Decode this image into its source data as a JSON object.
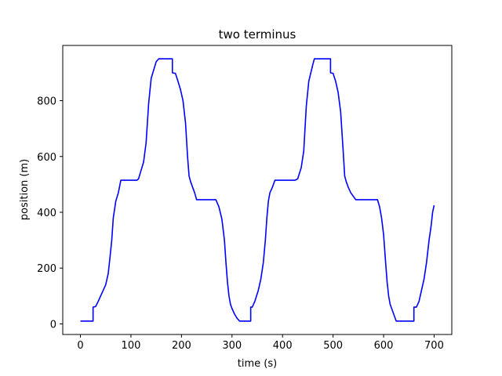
{
  "chart_data": {
    "type": "line",
    "title": "two terminus",
    "xlabel": "time (s)",
    "ylabel": "position (m)",
    "xlim": [
      -35,
      735
    ],
    "ylim": [
      -38,
      998
    ],
    "xticks": [
      0,
      100,
      200,
      300,
      400,
      500,
      600,
      700
    ],
    "yticks": [
      0,
      200,
      400,
      600,
      800
    ],
    "grid": false,
    "series": [
      {
        "color": "#0000ff",
        "x": [
          0,
          25,
          25,
          30,
          35,
          40,
          45,
          50,
          55,
          58,
          62,
          65,
          70,
          75,
          80,
          112,
          115,
          120,
          125,
          130,
          135,
          140,
          145,
          150,
          155,
          160,
          168,
          182,
          182,
          182,
          188,
          193,
          198,
          203,
          208,
          212,
          215,
          218,
          222,
          226,
          230,
          237,
          245,
          258,
          268,
          274,
          280,
          285,
          288,
          291,
          294,
          297,
          300,
          305,
          310,
          315,
          320,
          337,
          337,
          337,
          340,
          345,
          352,
          357,
          362,
          366,
          369,
          372,
          375,
          380,
          385,
          392,
          425,
          430,
          437,
          442,
          447,
          452,
          456,
          460,
          463,
          466,
          470,
          475,
          480,
          495,
          495,
          495,
          500,
          505,
          510,
          515,
          520,
          523,
          526,
          530,
          535,
          545,
          560,
          588,
          592,
          596,
          600,
          604,
          607,
          610,
          613,
          616,
          620,
          625,
          632,
          645,
          660,
          660,
          660,
          665,
          670,
          675,
          680,
          685,
          690,
          694,
          697,
          700
        ],
        "y": [
          10,
          10,
          60,
          62,
          80,
          100,
          120,
          140,
          180,
          230,
          300,
          380,
          440,
          470,
          515,
          515,
          520,
          550,
          580,
          650,
          790,
          880,
          910,
          940,
          950,
          950,
          950,
          950,
          900,
          900,
          898,
          870,
          840,
          800,
          720,
          600,
          530,
          510,
          490,
          470,
          445,
          445,
          445,
          445,
          445,
          420,
          375,
          300,
          220,
          150,
          100,
          70,
          55,
          35,
          20,
          10,
          10,
          10,
          20,
          60,
          60,
          80,
          120,
          160,
          220,
          300,
          380,
          440,
          470,
          490,
          515,
          515,
          515,
          520,
          560,
          620,
          780,
          870,
          900,
          930,
          950,
          950,
          950,
          950,
          950,
          950,
          900,
          900,
          898,
          870,
          830,
          760,
          620,
          530,
          510,
          490,
          470,
          445,
          445,
          445,
          420,
          380,
          320,
          220,
          150,
          100,
          70,
          55,
          35,
          10,
          10,
          10,
          10,
          20,
          60,
          60,
          80,
          120,
          160,
          220,
          300,
          350,
          400,
          425
        ]
      }
    ]
  }
}
